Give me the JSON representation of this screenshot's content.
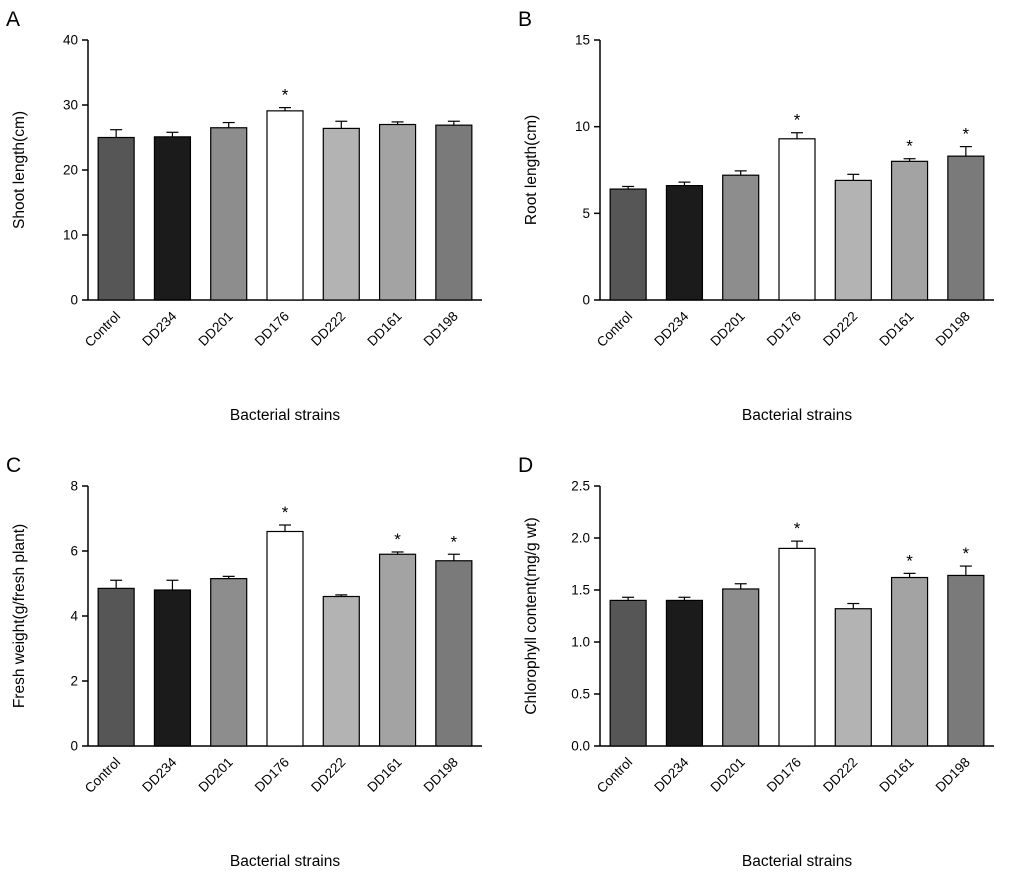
{
  "figure": {
    "xlabel": "Bacterial strains",
    "categories": [
      "Control",
      "DD234",
      "DD201",
      "DD176",
      "DD222",
      "DD161",
      "DD198"
    ],
    "significance_marker": "*"
  },
  "bar_colors": [
    "#565656",
    "#1b1b1b",
    "#8d8d8d",
    "#ffffff",
    "#b3b3b3",
    "#a3a3a3",
    "#7a7a7a"
  ],
  "axis_color": "#000000",
  "chart_data": [
    {
      "type": "bar",
      "panel": "A",
      "title": "",
      "xlabel": "Bacterial strains",
      "ylabel": "Shoot length(cm)",
      "ylim": [
        0,
        40
      ],
      "yticks": [
        "0",
        "10",
        "20",
        "30",
        "40"
      ],
      "categories": [
        "Control",
        "DD234",
        "DD201",
        "DD176",
        "DD222",
        "DD161",
        "DD198"
      ],
      "values": [
        25.0,
        25.1,
        26.5,
        29.1,
        26.4,
        27.0,
        26.9
      ],
      "errors": [
        1.2,
        0.7,
        0.8,
        0.5,
        1.1,
        0.4,
        0.6
      ],
      "significance": [
        "",
        "",
        "",
        "*",
        "",
        "",
        ""
      ],
      "grid": false,
      "legend": "none"
    },
    {
      "type": "bar",
      "panel": "B",
      "title": "",
      "xlabel": "Bacterial strains",
      "ylabel": "Root length(cm)",
      "ylim": [
        0,
        15
      ],
      "yticks": [
        "0",
        "5",
        "10",
        "15"
      ],
      "categories": [
        "Control",
        "DD234",
        "DD201",
        "DD176",
        "DD222",
        "DD161",
        "DD198"
      ],
      "values": [
        6.4,
        6.6,
        7.2,
        9.3,
        6.9,
        8.0,
        8.3
      ],
      "errors": [
        0.15,
        0.2,
        0.25,
        0.35,
        0.35,
        0.15,
        0.55
      ],
      "significance": [
        "",
        "",
        "",
        "*",
        "",
        "*",
        "*"
      ],
      "grid": false,
      "legend": "none"
    },
    {
      "type": "bar",
      "panel": "C",
      "title": "",
      "xlabel": "Bacterial strains",
      "ylabel": "Fresh weight(g/fresh plant)",
      "ylim": [
        0,
        8
      ],
      "yticks": [
        "0",
        "2",
        "4",
        "6",
        "8"
      ],
      "categories": [
        "Control",
        "DD234",
        "DD201",
        "DD176",
        "DD222",
        "DD161",
        "DD198"
      ],
      "values": [
        4.85,
        4.8,
        5.15,
        6.6,
        4.6,
        5.9,
        5.7
      ],
      "errors": [
        0.25,
        0.3,
        0.07,
        0.2,
        0.05,
        0.07,
        0.2
      ],
      "significance": [
        "",
        "",
        "",
        "*",
        "",
        "*",
        "*"
      ],
      "grid": false,
      "legend": "none"
    },
    {
      "type": "bar",
      "panel": "D",
      "title": "",
      "xlabel": "Bacterial strains",
      "ylabel": "Chlorophyll content(mg/g wt)",
      "ylim": [
        0,
        2.5
      ],
      "yticks": [
        "0.0",
        "0.5",
        "1.0",
        "1.5",
        "2.0",
        "2.5"
      ],
      "categories": [
        "Control",
        "DD234",
        "DD201",
        "DD176",
        "DD222",
        "DD161",
        "DD198"
      ],
      "values": [
        1.4,
        1.4,
        1.51,
        1.9,
        1.32,
        1.62,
        1.64
      ],
      "errors": [
        0.03,
        0.03,
        0.05,
        0.07,
        0.05,
        0.04,
        0.09
      ],
      "significance": [
        "",
        "",
        "",
        "*",
        "",
        "*",
        "*"
      ],
      "grid": false,
      "legend": "none"
    }
  ]
}
